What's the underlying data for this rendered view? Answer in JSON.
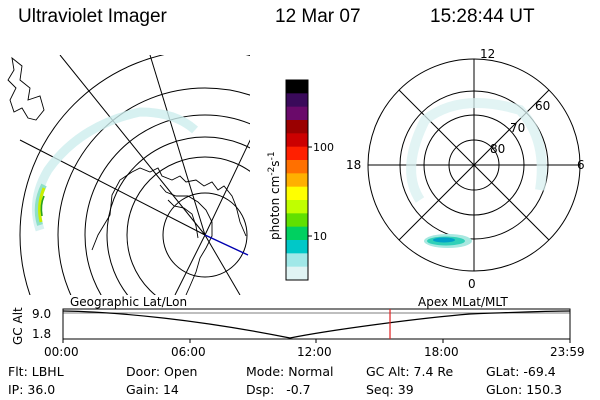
{
  "header": {
    "title": "Ultraviolet Imager",
    "date": "12 Mar 07",
    "time": "15:28:44 UT"
  },
  "colorbar": {
    "label": "photon cm",
    "label_sup1": "-2",
    "label_mid": "s",
    "label_sup2": "-1",
    "ticks": [
      "100",
      "10"
    ],
    "colors": [
      "#000000",
      "#3a0a5a",
      "#6a0a6a",
      "#9a0000",
      "#cc0000",
      "#ff2000",
      "#ff7000",
      "#ffb000",
      "#ffff00",
      "#c0ff00",
      "#60e000",
      "#00d060",
      "#00c8c8",
      "#a0e8e8",
      "#e0f4f4"
    ]
  },
  "polar_plot": {
    "mlt_labels": {
      "top": "12",
      "left": "18",
      "right": "6",
      "bottom": "0"
    },
    "lat_labels": [
      "60",
      "70",
      "80"
    ]
  },
  "timeline": {
    "axis_label": "GC Alt",
    "left_label": "Geographic Lat/Lon",
    "right_label": "Apex MLat/MLT",
    "y_ticks": [
      "9.0",
      "1.8"
    ],
    "x_ticks": [
      "00:00",
      "06:00",
      "12:00",
      "18:00",
      "23:59"
    ],
    "current_time_fraction": 0.645
  },
  "info": {
    "row1": [
      {
        "key": "Flt:",
        "val": "LBHL"
      },
      {
        "key": "Door:",
        "val": "Open"
      },
      {
        "key": "Mode:",
        "val": "Normal"
      },
      {
        "key": "GC Alt:",
        "val": "7.4 Re"
      },
      {
        "key": "GLat:",
        "val": "-69.4"
      }
    ],
    "row2": [
      {
        "key": "IP:",
        "val": "36.0"
      },
      {
        "key": "Gain:",
        "val": "14"
      },
      {
        "key": "Dsp:",
        "val": "-0.7"
      },
      {
        "key": "Seq:",
        "val": "39"
      },
      {
        "key": "GLon:",
        "val": "150.3"
      }
    ]
  }
}
